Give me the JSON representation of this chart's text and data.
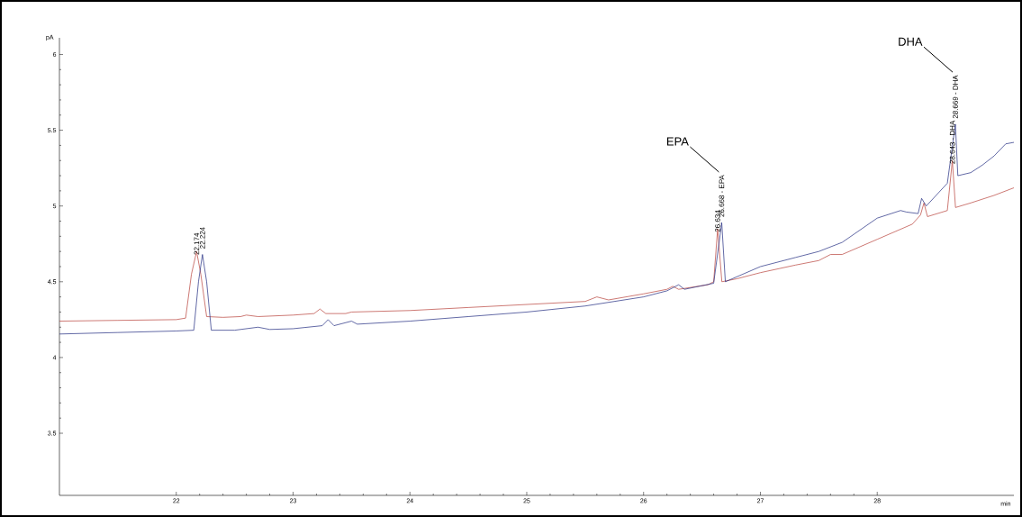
{
  "chart_data": {
    "type": "line",
    "xlabel": "min",
    "ylabel": "pA",
    "xlim": [
      21.0,
      29.17
    ],
    "ylim": [
      3.09,
      6.11
    ],
    "xticks": [
      22,
      23,
      24,
      25,
      26,
      27,
      28
    ],
    "yticks": [
      3.5,
      4,
      4.5,
      5,
      5.5,
      6
    ],
    "marker": "none",
    "line_style": "solid",
    "series": [
      {
        "color": "#b8403a",
        "x": [
          21.0,
          21.5,
          22.0,
          22.08,
          22.13,
          22.174,
          22.21,
          22.26,
          22.4,
          22.55,
          22.6,
          22.7,
          23.0,
          23.18,
          23.23,
          23.28,
          23.45,
          23.5,
          24.0,
          24.5,
          25.0,
          25.5,
          25.6,
          25.7,
          26.0,
          26.2,
          26.25,
          26.3,
          26.55,
          26.6,
          26.634,
          26.67,
          26.8,
          27.0,
          27.3,
          27.5,
          27.6,
          27.7,
          28.0,
          28.3,
          28.37,
          28.4,
          28.43,
          28.6,
          28.643,
          28.67,
          28.8,
          29.0,
          29.17
        ],
        "values": [
          4.24,
          4.245,
          4.25,
          4.26,
          4.55,
          4.7,
          4.55,
          4.27,
          4.265,
          4.27,
          4.28,
          4.27,
          4.28,
          4.29,
          4.32,
          4.29,
          4.29,
          4.3,
          4.31,
          4.33,
          4.35,
          4.37,
          4.4,
          4.38,
          4.42,
          4.45,
          4.47,
          4.45,
          4.48,
          4.5,
          4.85,
          4.5,
          4.52,
          4.56,
          4.61,
          4.64,
          4.68,
          4.68,
          4.78,
          4.88,
          4.94,
          5.02,
          4.93,
          4.97,
          5.3,
          4.99,
          5.02,
          5.07,
          5.12
        ]
      },
      {
        "color": "#1f2a80",
        "x": [
          21.0,
          21.5,
          22.0,
          22.15,
          22.19,
          22.224,
          22.26,
          22.3,
          22.5,
          22.7,
          22.8,
          23.0,
          23.25,
          23.3,
          23.35,
          23.5,
          23.55,
          24.0,
          24.5,
          25.0,
          25.5,
          26.0,
          26.2,
          26.3,
          26.35,
          26.6,
          26.669,
          26.7,
          27.0,
          27.3,
          27.5,
          27.7,
          28.0,
          28.2,
          28.25,
          28.35,
          28.38,
          28.42,
          28.6,
          28.669,
          28.69,
          28.8,
          28.9,
          29.0,
          29.1,
          29.17
        ],
        "values": [
          4.155,
          4.165,
          4.175,
          4.18,
          4.5,
          4.68,
          4.5,
          4.18,
          4.18,
          4.2,
          4.185,
          4.19,
          4.21,
          4.25,
          4.21,
          4.24,
          4.22,
          4.24,
          4.27,
          4.3,
          4.34,
          4.4,
          4.44,
          4.48,
          4.45,
          4.49,
          4.89,
          4.5,
          4.6,
          4.66,
          4.7,
          4.76,
          4.92,
          4.97,
          4.96,
          4.95,
          5.05,
          5.0,
          5.15,
          5.54,
          5.2,
          5.22,
          5.27,
          5.33,
          5.41,
          5.42
        ]
      }
    ],
    "annotations": [
      {
        "text": "22.174",
        "x": 22.174,
        "y": 4.7
      },
      {
        "text": "22.224",
        "x": 22.224,
        "y": 4.68
      },
      {
        "text": "26.634",
        "x": 26.634,
        "y": 4.85
      },
      {
        "text": "26.668 - EPA",
        "x": 26.668,
        "y": 4.89
      },
      {
        "text": "28.643 - DHA",
        "x": 28.643,
        "y": 5.3
      },
      {
        "text": "28.669 - DHA",
        "x": 28.669,
        "y": 5.54
      },
      "EPA",
      "DHA"
    ]
  }
}
